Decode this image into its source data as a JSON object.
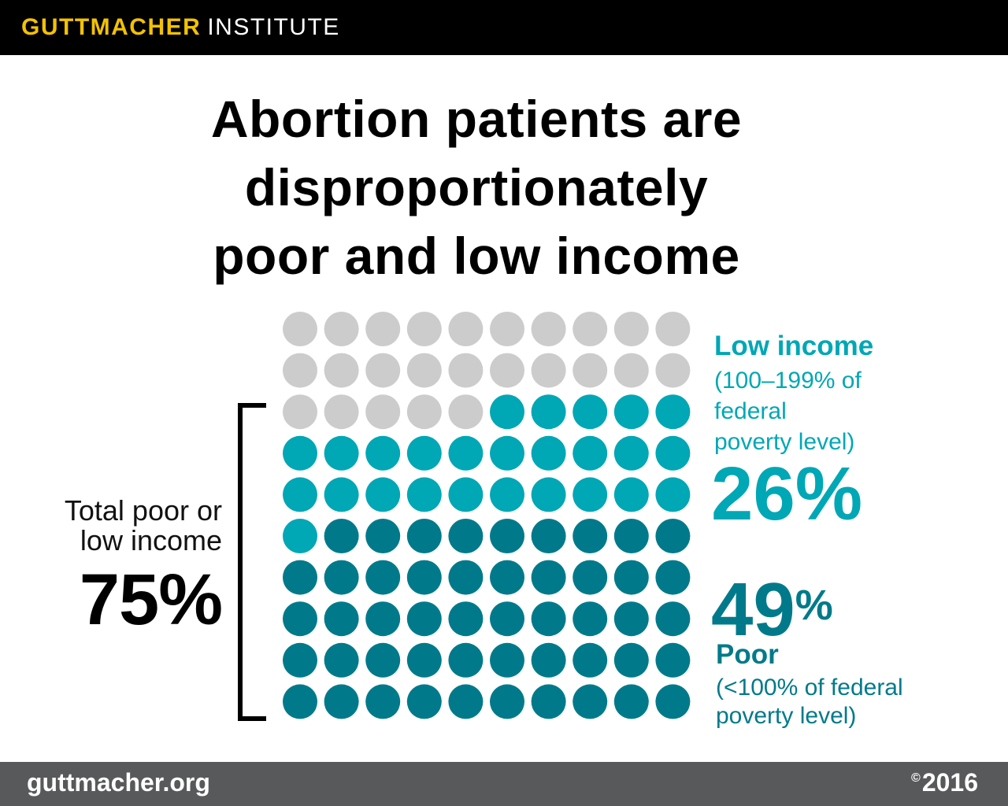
{
  "header": {
    "brand_primary": "GUTTMACHER",
    "brand_secondary": "INSTITUTE",
    "brand_color": "#f2c200"
  },
  "headline": {
    "line1": "Abortion patients are",
    "line2": "disproportionately",
    "line3": "poor and low income"
  },
  "chart_data": {
    "type": "waffle",
    "total_units": 100,
    "grid": {
      "rows": 10,
      "cols": 10
    },
    "series": [
      {
        "name": "Poor",
        "value": 49,
        "color": "#007a8a"
      },
      {
        "name": "Low income",
        "value": 26,
        "color": "#00a7b5"
      },
      {
        "name": "",
        "value": 25,
        "color": "#cccccc"
      }
    ],
    "total": {
      "label_line1": "Total poor or",
      "label_line2": "low income",
      "value_text": "75%"
    },
    "low_income": {
      "title": "Low income",
      "desc_line1": "(100–199% of",
      "desc_line2": "federal",
      "desc_line3": "poverty level)",
      "value_text": "26%"
    },
    "poor": {
      "value_number": "49",
      "value_symbol": "%",
      "title": "Poor",
      "desc_line1": "(<100% of federal",
      "desc_line2": "poverty level)"
    }
  },
  "footer": {
    "url": "guttmacher.org",
    "copyright_symbol": "©",
    "year": "2016"
  }
}
